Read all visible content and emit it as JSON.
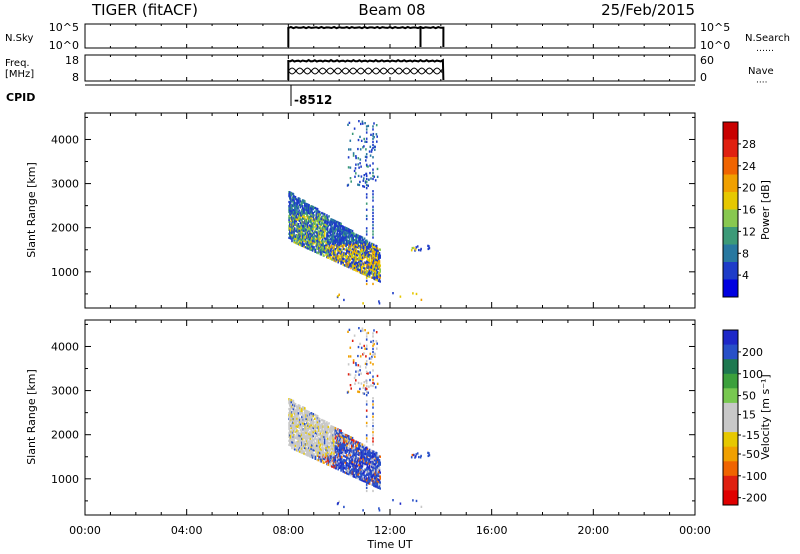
{
  "header": {
    "radar": "TIGER (fitACF)",
    "beam": "Beam 08",
    "date": "25/Feb/2015"
  },
  "side_labels": {
    "nsky": "N.Sky",
    "freq_line1": "Freq.",
    "freq_line2": "[MHz]",
    "cpid": "CPID",
    "nsearch": "N.Search",
    "nave": "Nave",
    "nsearch_dots": "……",
    "nave_dots": "····"
  },
  "cpid_value": "-8512",
  "chart_data": [
    {
      "type": "line",
      "panel": "noise",
      "left_ticks": [
        "10^5",
        "10^0"
      ],
      "right_ticks": [
        "10^5",
        "10^0"
      ],
      "x_range_hours": [
        0,
        24
      ],
      "segments": [
        [
          8.0,
          13.2
        ],
        [
          13.2,
          14.1
        ]
      ]
    },
    {
      "type": "line",
      "panel": "frequency-nave",
      "left_ticks": [
        "18",
        "8"
      ],
      "right_ticks": [
        "60",
        "0"
      ],
      "x_range_hours": [
        0,
        24
      ],
      "freq_segment": [
        8.0,
        14.1
      ]
    },
    {
      "type": "heatmap",
      "panel": "power",
      "ylabel": "Slant Range [km]",
      "yticks": [
        "1000",
        "2000",
        "3000",
        "4000"
      ],
      "ylim": [
        180,
        4600
      ],
      "colorbar_label": "Power [dB]",
      "colorbar_ticks": [
        "4",
        "8",
        "12",
        "16",
        "20",
        "24",
        "28"
      ],
      "colorbar_colors": [
        "#0000e0",
        "#1e3cc8",
        "#2878a0",
        "#3c9a78",
        "#88c850",
        "#e6c800",
        "#f0a000",
        "#f06400",
        "#e02010",
        "#c80000"
      ]
    },
    {
      "type": "heatmap",
      "panel": "velocity",
      "ylabel": "Slant Range [km]",
      "yticks": [
        "1000",
        "2000",
        "3000",
        "4000"
      ],
      "ylim": [
        180,
        4600
      ],
      "colorbar_label": "Velocity [m s⁻¹]",
      "colorbar_ticks": [
        "200",
        "100",
        "50",
        "15",
        "-15",
        "-50",
        "-100",
        "-200"
      ],
      "colorbar_colors": [
        "#1e28c8",
        "#2850c8",
        "#1e7850",
        "#3ca03c",
        "#78c850",
        "#c8c8c8",
        "#c8c8c8",
        "#e6c800",
        "#f0a000",
        "#f06400",
        "#e02010",
        "#e00000"
      ]
    }
  ],
  "xaxis": {
    "ticks": [
      "00:00",
      "04:00",
      "08:00",
      "12:00",
      "16:00",
      "20:00",
      "00:00"
    ],
    "label": "Time UT"
  }
}
